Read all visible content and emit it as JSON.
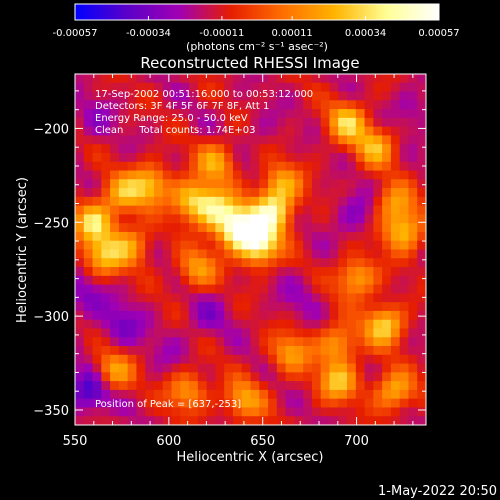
{
  "chart_data": {
    "type": "heatmap",
    "title": "Reconstructed RHESSI Image",
    "xlabel": "Heliocentric X (arcsec)",
    "ylabel": "Heliocentric Y (arcsec)",
    "xlim": [
      550,
      737
    ],
    "ylim": [
      -358,
      -171
    ],
    "x_ticks": [
      550,
      600,
      650,
      700
    ],
    "y_ticks": [
      -350,
      -300,
      -250,
      -200
    ],
    "colorbar": {
      "min": -0.00057,
      "max": 0.00057,
      "tick_values": [
        -0.00057,
        -0.00034,
        -0.00011,
        0.00011,
        0.00034,
        0.00057
      ],
      "tick_labels": [
        "-0.00057",
        "-0.00034",
        "-0.00011",
        "0.00011",
        "0.00034",
        "0.00057"
      ],
      "unit_label": "(photons cm⁻² s⁻¹ asec⁻²)",
      "colors": [
        "#0000ff",
        "#5a00c8",
        "#a000b4",
        "#e61e00",
        "#ff6e00",
        "#ffb400",
        "#ffff96",
        "#ffffff"
      ]
    },
    "annotations": [
      "17-Sep-2002 00:51:16.000 to 00:53:12.000",
      "Detectors: 3F 4F 5F 6F 7F 8F, Att 1",
      "Energy Range: 25.0 - 50.0 keV",
      "Clean     Total counts: 1.74E+03"
    ],
    "peak_label": "Position of Peak = [637,-253]",
    "peak": {
      "x": 637,
      "y": -253,
      "value": 0.00057
    },
    "sources": [
      {
        "x": 637,
        "y": -253,
        "value": 0.00057
      },
      {
        "x": 648,
        "y": -262,
        "value": 0.00048
      },
      {
        "x": 655,
        "y": -245,
        "value": 0.00042
      },
      {
        "x": 625,
        "y": -243,
        "value": 0.00034
      },
      {
        "x": 612,
        "y": -238,
        "value": 0.0003
      },
      {
        "x": 590,
        "y": -230,
        "value": 0.00028
      },
      {
        "x": 575,
        "y": -235,
        "value": 0.00022
      },
      {
        "x": 560,
        "y": -250,
        "value": 0.00034
      },
      {
        "x": 565,
        "y": -268,
        "value": 0.00026
      },
      {
        "x": 580,
        "y": -262,
        "value": 0.0002
      },
      {
        "x": 625,
        "y": -218,
        "value": 0.00022
      },
      {
        "x": 695,
        "y": -197,
        "value": 0.0003
      },
      {
        "x": 710,
        "y": -210,
        "value": 0.00024
      },
      {
        "x": 725,
        "y": -255,
        "value": 0.0003
      },
      {
        "x": 720,
        "y": -240,
        "value": 0.0002
      },
      {
        "x": 700,
        "y": -280,
        "value": 0.00026
      },
      {
        "x": 715,
        "y": -305,
        "value": 0.00034
      },
      {
        "x": 690,
        "y": -315,
        "value": 0.00022
      },
      {
        "x": 665,
        "y": -320,
        "value": 0.0002
      },
      {
        "x": 690,
        "y": -335,
        "value": 0.00028
      },
      {
        "x": 720,
        "y": -340,
        "value": 0.00026
      },
      {
        "x": 640,
        "y": -345,
        "value": 0.00022
      },
      {
        "x": 610,
        "y": -340,
        "value": 0.0002
      },
      {
        "x": 570,
        "y": -330,
        "value": 0.00024
      },
      {
        "x": 660,
        "y": -230,
        "value": 0.00024
      },
      {
        "x": 615,
        "y": -275,
        "value": 0.0002
      }
    ],
    "negative_regions": [
      {
        "x": 558,
        "y": -340,
        "value": -0.00045
      },
      {
        "x": 575,
        "y": -305,
        "value": -0.0003
      },
      {
        "x": 555,
        "y": -290,
        "value": -0.00028
      },
      {
        "x": 700,
        "y": -245,
        "value": -0.00028
      },
      {
        "x": 620,
        "y": -300,
        "value": -0.00024
      },
      {
        "x": 670,
        "y": -290,
        "value": -0.0002
      },
      {
        "x": 560,
        "y": -195,
        "value": -0.00022
      },
      {
        "x": 730,
        "y": -190,
        "value": -0.00024
      },
      {
        "x": 650,
        "y": -200,
        "value": -0.00018
      },
      {
        "x": 600,
        "y": -320,
        "value": -0.00018
      }
    ],
    "grid": false,
    "legend": "none"
  },
  "footer": {
    "timestamp": "1-May-2022 20:50"
  }
}
